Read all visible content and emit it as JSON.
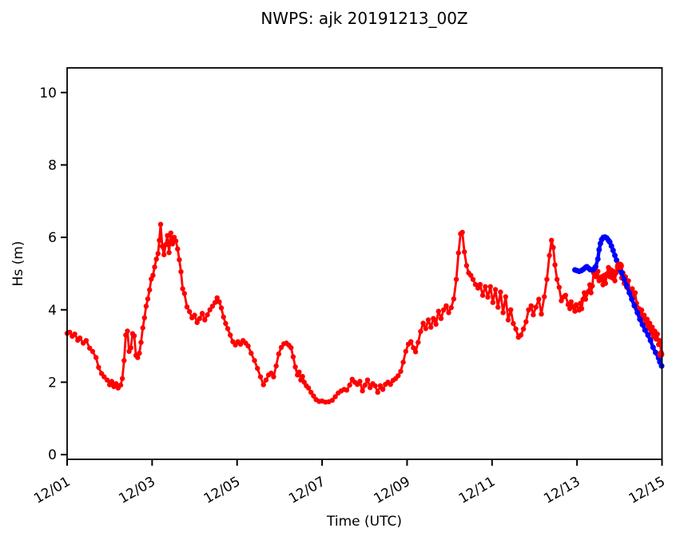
{
  "title": "NWPS: ajk 20191213_00Z",
  "colors": {
    "observation": "#ff0000",
    "forecast": "#0000ff",
    "axes": "#000000",
    "background": "#ffffff"
  },
  "chart_data": {
    "type": "line",
    "title": "NWPS: ajk 20191213_00Z",
    "xlabel": "Time (UTC)",
    "ylabel": "Hs (m)",
    "x_unit": "days since 12/01 00:00 UTC",
    "xlim": [
      0,
      14
    ],
    "ylim": [
      -0.13,
      10.68
    ],
    "grid": false,
    "legend": "none",
    "xticks": {
      "positions": [
        0,
        2,
        4,
        6,
        8,
        10,
        12,
        14
      ],
      "labels": [
        "12/01",
        "12/03",
        "12/05",
        "12/07",
        "12/09",
        "12/11",
        "12/13",
        "12/15"
      ],
      "rotation_deg": -30
    },
    "yticks": {
      "positions": [
        0,
        2,
        4,
        6,
        8,
        10
      ],
      "labels": [
        "0",
        "2",
        "4",
        "6",
        "8",
        "10"
      ]
    },
    "series": [
      {
        "name": "observed Hs",
        "color": "#ff0000",
        "marker": "circle",
        "x": [
          0.0,
          0.06,
          0.12,
          0.18,
          0.25,
          0.3,
          0.38,
          0.45,
          0.53,
          0.6,
          0.68,
          0.74,
          0.81,
          0.87,
          0.94,
          1.0,
          1.05,
          1.1,
          1.15,
          1.2,
          1.26,
          1.3,
          1.34,
          1.38,
          1.42,
          1.46,
          1.5,
          1.54,
          1.58,
          1.62,
          1.66,
          1.7,
          1.74,
          1.78,
          1.82,
          1.86,
          1.9,
          1.94,
          1.98,
          2.02,
          2.06,
          2.1,
          2.14,
          2.17,
          2.2,
          2.24,
          2.28,
          2.32,
          2.36,
          2.4,
          2.44,
          2.48,
          2.52,
          2.56,
          2.6,
          2.64,
          2.68,
          2.72,
          2.76,
          2.82,
          2.88,
          2.94,
          3.0,
          3.06,
          3.12,
          3.18,
          3.24,
          3.3,
          3.36,
          3.42,
          3.48,
          3.53,
          3.58,
          3.63,
          3.68,
          3.73,
          3.78,
          3.84,
          3.9,
          3.96,
          4.02,
          4.08,
          4.14,
          4.2,
          4.26,
          4.33,
          4.41,
          4.48,
          4.55,
          4.62,
          4.68,
          4.74,
          4.8,
          4.86,
          4.92,
          4.98,
          5.04,
          5.1,
          5.16,
          5.22,
          5.27,
          5.32,
          5.37,
          5.42,
          5.46,
          5.5,
          5.54,
          5.58,
          5.63,
          5.68,
          5.74,
          5.8,
          5.86,
          5.93,
          6.0,
          6.08,
          6.16,
          6.24,
          6.31,
          6.38,
          6.45,
          6.52,
          6.58,
          6.65,
          6.71,
          6.77,
          6.83,
          6.89,
          6.95,
          7.01,
          7.07,
          7.13,
          7.19,
          7.25,
          7.31,
          7.37,
          7.43,
          7.49,
          7.55,
          7.61,
          7.67,
          7.73,
          7.79,
          7.85,
          7.91,
          7.97,
          8.03,
          8.09,
          8.15,
          8.2,
          8.26,
          8.32,
          8.38,
          8.44,
          8.5,
          8.56,
          8.62,
          8.68,
          8.74,
          8.8,
          8.86,
          8.92,
          8.98,
          9.04,
          9.1,
          9.16,
          9.21,
          9.26,
          9.3,
          9.35,
          9.4,
          9.45,
          9.5,
          9.55,
          9.61,
          9.67,
          9.72,
          9.78,
          9.84,
          9.9,
          9.96,
          10.02,
          10.08,
          10.14,
          10.2,
          10.26,
          10.32,
          10.38,
          10.44,
          10.5,
          10.56,
          10.62,
          10.68,
          10.74,
          10.8,
          10.86,
          10.92,
          10.97,
          11.03,
          11.1,
          11.16,
          11.23,
          11.29,
          11.35,
          11.4,
          11.44,
          11.48,
          11.53,
          11.58,
          11.63,
          11.69,
          11.73,
          11.79,
          11.83,
          11.86,
          11.92,
          11.95,
          11.98,
          12.05,
          12.08,
          12.11,
          12.14,
          12.17,
          12.2,
          12.27,
          12.3,
          12.33,
          12.36,
          12.39,
          12.42,
          12.45,
          12.49,
          12.52,
          12.58,
          12.61,
          12.64,
          12.67,
          12.7,
          12.74,
          12.77,
          12.8,
          12.83,
          12.86,
          12.89,
          12.92,
          12.95,
          13.0,
          13.05,
          13.08,
          13.11,
          13.14,
          13.17,
          13.21,
          13.24,
          13.27,
          13.3,
          13.33,
          13.37,
          13.4,
          13.46,
          13.49,
          13.52,
          13.55,
          13.58,
          13.61,
          13.65,
          13.68,
          13.71,
          13.74,
          13.77,
          13.8,
          13.83,
          13.86,
          13.89,
          13.92,
          13.95,
          13.98
        ],
        "y": [
          3.35,
          3.38,
          3.27,
          3.33,
          3.16,
          3.22,
          3.08,
          3.15,
          2.94,
          2.85,
          2.68,
          2.41,
          2.24,
          2.15,
          2.06,
          1.93,
          2.02,
          1.88,
          1.96,
          1.84,
          1.92,
          2.1,
          2.6,
          3.3,
          3.41,
          2.85,
          2.95,
          3.34,
          3.28,
          2.74,
          2.68,
          2.8,
          3.1,
          3.5,
          3.78,
          4.1,
          4.3,
          4.55,
          4.85,
          4.95,
          5.18,
          5.4,
          5.55,
          5.92,
          6.36,
          5.75,
          5.52,
          5.8,
          6.05,
          5.58,
          6.12,
          5.82,
          6.0,
          5.9,
          5.68,
          5.38,
          5.05,
          4.58,
          4.45,
          4.08,
          3.95,
          3.78,
          3.85,
          3.65,
          3.76,
          3.9,
          3.72,
          3.86,
          4.0,
          4.1,
          4.2,
          4.33,
          4.22,
          4.05,
          3.8,
          3.62,
          3.48,
          3.3,
          3.12,
          3.03,
          3.12,
          3.05,
          3.15,
          3.08,
          3.0,
          2.8,
          2.6,
          2.38,
          2.15,
          1.93,
          2.06,
          2.2,
          2.25,
          2.15,
          2.45,
          2.78,
          2.96,
          3.06,
          3.08,
          3.02,
          2.95,
          2.7,
          2.42,
          2.2,
          2.28,
          2.06,
          2.16,
          2.0,
          1.9,
          1.84,
          1.72,
          1.62,
          1.52,
          1.47,
          1.48,
          1.45,
          1.46,
          1.5,
          1.6,
          1.7,
          1.76,
          1.8,
          1.78,
          1.92,
          2.08,
          2.0,
          1.94,
          2.02,
          1.76,
          1.92,
          2.06,
          1.85,
          1.96,
          1.9,
          1.72,
          1.9,
          1.8,
          1.94,
          2.0,
          1.94,
          2.05,
          2.1,
          2.18,
          2.3,
          2.55,
          2.85,
          3.05,
          3.12,
          2.95,
          2.84,
          3.1,
          3.4,
          3.63,
          3.48,
          3.72,
          3.52,
          3.76,
          3.6,
          3.96,
          3.76,
          4.0,
          4.11,
          3.92,
          4.06,
          4.3,
          4.84,
          5.57,
          6.1,
          6.14,
          5.6,
          5.22,
          5.02,
          4.95,
          4.84,
          4.7,
          4.6,
          4.7,
          4.4,
          4.64,
          4.35,
          4.64,
          4.2,
          4.56,
          4.07,
          4.49,
          3.92,
          4.36,
          3.72,
          4.0,
          3.62,
          3.47,
          3.24,
          3.3,
          3.47,
          3.67,
          4.0,
          4.11,
          3.86,
          4.07,
          4.29,
          3.88,
          4.36,
          4.84,
          5.5,
          5.92,
          5.72,
          5.24,
          4.84,
          4.62,
          4.25,
          4.36,
          4.4,
          4.14,
          4.03,
          4.22,
          4.07,
          3.96,
          4.14,
          3.99,
          4.18,
          4.03,
          4.29,
          4.47,
          4.29,
          4.51,
          4.69,
          4.47,
          4.66,
          5.02,
          5.17,
          4.91,
          5.06,
          4.8,
          4.91,
          4.69,
          4.95,
          4.73,
          4.99,
          5.17,
          4.91,
          5.1,
          4.88,
          5.06,
          4.8,
          5.02,
          5.17,
          5.21,
          4.88,
          5.02,
          4.73,
          4.91,
          4.62,
          4.8,
          4.51,
          4.4,
          4.58,
          4.33,
          4.47,
          4.18,
          4.03,
          3.85,
          3.99,
          3.74,
          3.85,
          3.59,
          3.74,
          3.48,
          3.63,
          3.37,
          3.52,
          3.26,
          3.41,
          3.19,
          3.33,
          3.04,
          3.15,
          2.82
        ]
      },
      {
        "name": "forecast Hs (20191213_00Z)",
        "color": "#0000ff",
        "marker": "circle",
        "x": [
          11.95,
          12.0,
          12.05,
          12.1,
          12.15,
          12.2,
          12.23,
          12.27,
          12.31,
          12.36,
          12.4,
          12.44,
          12.49,
          12.52,
          12.55,
          12.58,
          12.62,
          12.66,
          12.7,
          12.74,
          12.77,
          12.81,
          12.85,
          12.89,
          12.93,
          12.98,
          13.02,
          13.05,
          13.11,
          13.17,
          13.23,
          13.29,
          13.35,
          13.42,
          13.48,
          13.54,
          13.6,
          13.67,
          13.73,
          13.79,
          13.85,
          13.92,
          13.95,
          13.99
        ],
        "y": [
          5.1,
          5.08,
          5.06,
          5.08,
          5.12,
          5.17,
          5.19,
          5.15,
          5.11,
          5.1,
          5.13,
          5.19,
          5.4,
          5.66,
          5.83,
          5.94,
          6.0,
          6.01,
          5.98,
          5.92,
          5.87,
          5.76,
          5.64,
          5.5,
          5.37,
          5.21,
          5.1,
          5.02,
          4.84,
          4.66,
          4.47,
          4.29,
          4.11,
          3.92,
          3.74,
          3.59,
          3.44,
          3.3,
          3.15,
          2.96,
          2.82,
          2.67,
          2.56,
          2.45
        ]
      }
    ],
    "highlight_points": [
      {
        "name": "latest-observation-marker",
        "color": "#ff0000",
        "x": 13.0,
        "y": 5.21,
        "radius": 5.5
      },
      {
        "name": "end-observation-marker",
        "color": "#ff0000",
        "x": 13.97,
        "y": 2.77,
        "radius": 4.5
      }
    ]
  }
}
